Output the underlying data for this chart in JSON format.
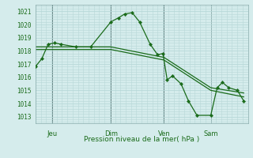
{
  "background_color": "#d5ecec",
  "grid_color": "#b8d8d8",
  "line_color": "#1a6b1a",
  "marker_color": "#1a6b1a",
  "xlabel": "Pression niveau de la mer( hPa )",
  "ylim": [
    1012.5,
    1021.5
  ],
  "yticks": [
    1013,
    1014,
    1015,
    1016,
    1017,
    1018,
    1019,
    1020,
    1021
  ],
  "xtick_labels": [
    "Jeu",
    "Dim",
    "Ven",
    "Sam"
  ],
  "vline_positions": [
    0.08,
    0.355,
    0.605,
    0.825
  ],
  "series1_x": [
    0.0,
    0.03,
    0.06,
    0.09,
    0.12,
    0.19,
    0.26,
    0.355,
    0.39,
    0.42,
    0.455,
    0.49,
    0.54,
    0.575,
    0.6,
    0.62,
    0.645,
    0.685,
    0.72,
    0.76,
    0.825,
    0.855,
    0.88,
    0.91,
    0.95,
    0.98
  ],
  "series1_y": [
    1016.8,
    1017.4,
    1018.5,
    1018.6,
    1018.5,
    1018.3,
    1018.3,
    1020.2,
    1020.5,
    1020.8,
    1020.9,
    1020.2,
    1018.5,
    1017.7,
    1017.8,
    1015.8,
    1016.1,
    1015.5,
    1014.2,
    1013.1,
    1013.1,
    1015.2,
    1015.6,
    1015.2,
    1015.0,
    1014.2
  ],
  "series2_x": [
    0.0,
    0.355,
    0.605,
    0.825,
    0.98
  ],
  "series2_y": [
    1018.3,
    1018.3,
    1017.5,
    1015.2,
    1014.8
  ],
  "series3_x": [
    0.0,
    0.355,
    0.605,
    0.825,
    0.98
  ],
  "series3_y": [
    1018.1,
    1018.1,
    1017.3,
    1015.0,
    1014.5
  ],
  "xtick_label_x": [
    0.08,
    0.355,
    0.605,
    0.825
  ],
  "figsize": [
    3.2,
    2.0
  ],
  "dpi": 100
}
